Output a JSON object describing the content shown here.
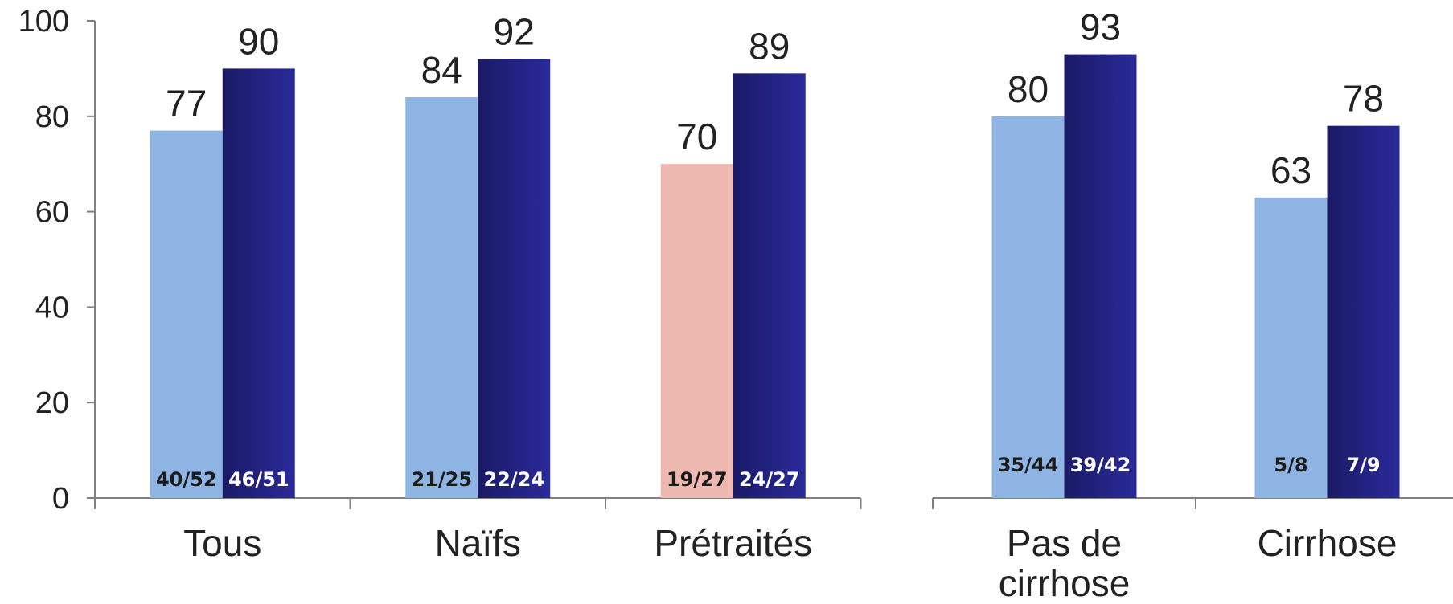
{
  "chart_data": [
    {
      "type": "bar",
      "ylim": [
        0,
        100
      ],
      "yticks": [
        0,
        20,
        40,
        60,
        80,
        100
      ],
      "grid": false,
      "categories": [
        "Tous",
        "Naïfs",
        "Prétraités"
      ],
      "bars": [
        [
          {
            "value": 77,
            "label": "77",
            "fraction": "40/52",
            "color": "#8eb4e3",
            "text_color": "#1a1a1a"
          },
          {
            "value": 90,
            "label": "90",
            "fraction": "46/51",
            "color": "#23238f",
            "text_color": "#ffffff"
          }
        ],
        [
          {
            "value": 84,
            "label": "84",
            "fraction": "21/25",
            "color": "#8eb4e3",
            "text_color": "#1a1a1a"
          },
          {
            "value": 92,
            "label": "92",
            "fraction": "22/24",
            "color": "#23238f",
            "text_color": "#ffffff"
          }
        ],
        [
          {
            "value": 70,
            "label": "70",
            "fraction": "19/27",
            "color": "#ecb8b0",
            "text_color": "#1a1a1a"
          },
          {
            "value": 89,
            "label": "89",
            "fraction": "24/27",
            "color": "#23238f",
            "text_color": "#ffffff"
          }
        ]
      ]
    },
    {
      "type": "bar",
      "ylim": [
        0,
        100
      ],
      "grid": false,
      "categories": [
        [
          "Pas de",
          "cirrhose"
        ],
        [
          "Cirrhose"
        ]
      ],
      "bars": [
        [
          {
            "value": 80,
            "label": "80",
            "fraction": "35/44",
            "color": "#8eb4e3",
            "text_color": "#1a1a1a"
          },
          {
            "value": 93,
            "label": "93",
            "fraction": "39/42",
            "color": "#23238f",
            "text_color": "#ffffff"
          }
        ],
        [
          {
            "value": 63,
            "label": "63",
            "fraction": "5/8",
            "color": "#8eb4e3",
            "text_color": "#1a1a1a"
          },
          {
            "value": 78,
            "label": "78",
            "fraction": "7/9",
            "color": "#23238f",
            "text_color": "#ffffff"
          }
        ]
      ]
    }
  ]
}
